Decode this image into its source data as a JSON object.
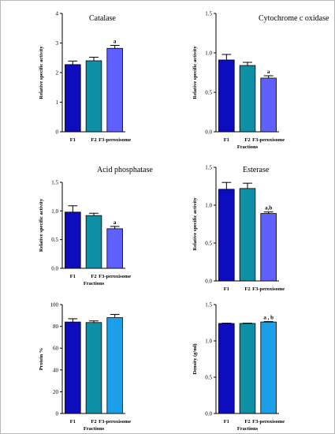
{
  "chart_data": [
    {
      "type": "bar",
      "title": "Catalase",
      "xlabel": "",
      "ylabel": "Relative specific activity",
      "ylim": [
        0,
        4
      ],
      "yticks": [
        "0",
        "1",
        "2",
        "3",
        "4"
      ],
      "ytick_values": [
        0,
        1,
        2,
        3,
        4
      ],
      "categories": [
        "F1",
        "F2",
        "F3-peroxisome"
      ],
      "values": [
        2.27,
        2.4,
        2.82
      ],
      "errors": [
        0.12,
        0.12,
        0.1
      ],
      "annotations": [
        "",
        "",
        "a"
      ],
      "colors": [
        "#0d0dbf",
        "#0f8fa6",
        "#6060ff"
      ]
    },
    {
      "type": "bar",
      "title": "Cytochrome c oxidase",
      "xlabel": "Fractions",
      "ylabel": "Relative specific activity",
      "ylim": [
        0,
        1.5
      ],
      "yticks": [
        "0.0",
        "0.5",
        "1.0",
        "1.5"
      ],
      "ytick_values": [
        0,
        0.5,
        1.0,
        1.5
      ],
      "categories": [
        "F1",
        "F2",
        "F3-peroxisome"
      ],
      "values": [
        0.91,
        0.84,
        0.68
      ],
      "errors": [
        0.07,
        0.04,
        0.03
      ],
      "annotations": [
        "",
        "",
        "a"
      ],
      "colors": [
        "#0d0dbf",
        "#0f8fa6",
        "#6060ff"
      ]
    },
    {
      "type": "bar",
      "title": "Acid phosphatase",
      "xlabel": "Fractions",
      "ylabel": "Relative specific activity",
      "ylim": [
        0,
        1.5
      ],
      "yticks": [
        "0.0",
        "0.5",
        "1.0",
        "1.5"
      ],
      "ytick_values": [
        0,
        0.5,
        1.0,
        1.5
      ],
      "categories": [
        "F1",
        "F2",
        "F3-peroxisome"
      ],
      "values": [
        0.98,
        0.92,
        0.69
      ],
      "errors": [
        0.11,
        0.04,
        0.04
      ],
      "annotations": [
        "",
        "",
        "a"
      ],
      "colors": [
        "#0d0dbf",
        "#0f8fa6",
        "#6060ff"
      ]
    },
    {
      "type": "bar",
      "title": "Esterase",
      "xlabel": "",
      "ylabel": "Relative specific activity",
      "ylim": [
        0,
        1.5
      ],
      "yticks": [
        "0.0",
        "0.5",
        "1.0",
        "1.5"
      ],
      "ytick_values": [
        0,
        0.5,
        1.0,
        1.5
      ],
      "categories": [
        "F1",
        "F2",
        "F3-peroxisome"
      ],
      "values": [
        1.21,
        1.22,
        0.89
      ],
      "errors": [
        0.09,
        0.07,
        0.02
      ],
      "annotations": [
        "",
        "",
        "a,b"
      ],
      "colors": [
        "#0d0dbf",
        "#0f8fa6",
        "#6060ff"
      ]
    },
    {
      "type": "bar",
      "title": "",
      "xlabel": "Fractions",
      "ylabel": "Protein %",
      "ylim": [
        0,
        100
      ],
      "yticks": [
        "0",
        "20",
        "40",
        "60",
        "80",
        "100"
      ],
      "ytick_values": [
        0,
        20,
        40,
        60,
        80,
        100
      ],
      "categories": [
        "F1",
        "F2",
        "F3-peroxisome"
      ],
      "values": [
        84,
        83.5,
        88
      ],
      "errors": [
        3,
        1.5,
        3
      ],
      "annotations": [
        "",
        "",
        ""
      ],
      "colors": [
        "#0d0dbf",
        "#0f8fa6",
        "#1a9fe8"
      ]
    },
    {
      "type": "bar",
      "title": "",
      "xlabel": "Fractions",
      "ylabel": "Density (g/ml)",
      "ylim": [
        0,
        1.5
      ],
      "yticks": [
        "0.0",
        "0.5",
        "1.0",
        "1.5"
      ],
      "ytick_values": [
        0,
        0.5,
        1.0,
        1.5
      ],
      "categories": [
        "F1",
        "F2",
        "F3-peroxisome"
      ],
      "values": [
        1.24,
        1.24,
        1.26
      ],
      "errors": [
        0.005,
        0.005,
        0.007
      ],
      "annotations": [
        "",
        "",
        "a , b"
      ],
      "colors": [
        "#0d0dbf",
        "#0f8fa6",
        "#1a9fe8"
      ]
    }
  ]
}
